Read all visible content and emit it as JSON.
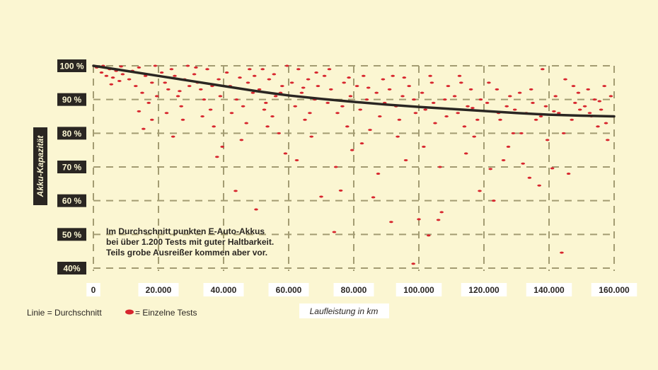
{
  "chart_data": {
    "type": "scatter",
    "title": "",
    "xlabel": "Laufleistung in km",
    "ylabel": "Akku-Kapazität",
    "xlim": [
      0,
      160000
    ],
    "ylim": [
      40,
      100
    ],
    "grid": true,
    "x_ticks": [
      {
        "value": 0,
        "label": "0"
      },
      {
        "value": 20000,
        "label": "20.000"
      },
      {
        "value": 40000,
        "label": "40.000"
      },
      {
        "value": 60000,
        "label": "60.000"
      },
      {
        "value": 80000,
        "label": "80.000"
      },
      {
        "value": 100000,
        "label": "100.000"
      },
      {
        "value": 120000,
        "label": "120.000"
      },
      {
        "value": 140000,
        "label": "140.000"
      },
      {
        "value": 160000,
        "label": "160.000"
      }
    ],
    "y_ticks": [
      {
        "value": 100,
        "label": "100 %"
      },
      {
        "value": 90,
        "label": "90 %"
      },
      {
        "value": 80,
        "label": "80 %"
      },
      {
        "value": 70,
        "label": "70 %"
      },
      {
        "value": 60,
        "label": "60 %"
      },
      {
        "value": 50,
        "label": "50 %"
      },
      {
        "value": 40,
        "label": "40%"
      }
    ],
    "annotation": [
      "Im Durchschnitt punkten E-Auto-Akkus",
      "bei über 1.200 Tests mit guter Haltbarkeit.",
      "Teils grobe Ausreißer kommen aber vor."
    ],
    "legend": {
      "line": "Linie = Durchschnitt",
      "points": "= Einzelne Tests",
      "placement": "bottom-left"
    },
    "colors": {
      "points": "#d7262e",
      "line": "#2a2622",
      "grid": "#a39c72",
      "background": "#fbf6d2"
    },
    "series": [
      {
        "type": "line",
        "name": "Durchschnitt",
        "points": [
          [
            0,
            100
          ],
          [
            10000,
            98.5
          ],
          [
            20000,
            97
          ],
          [
            30000,
            95.5
          ],
          [
            40000,
            94
          ],
          [
            50000,
            92.5
          ],
          [
            60000,
            91.2
          ],
          [
            70000,
            90.2
          ],
          [
            80000,
            89.3
          ],
          [
            90000,
            88.5
          ],
          [
            100000,
            87.8
          ],
          [
            110000,
            87.2
          ],
          [
            120000,
            86.6
          ],
          [
            130000,
            86
          ],
          [
            140000,
            85.5
          ],
          [
            150000,
            85.2
          ],
          [
            160000,
            85
          ]
        ]
      },
      {
        "type": "scatter",
        "name": "Einzelne Tests",
        "points": [
          [
            1000,
            99.5
          ],
          [
            2500,
            98
          ],
          [
            3000,
            100
          ],
          [
            4000,
            97
          ],
          [
            5000,
            99
          ],
          [
            6000,
            96.5
          ],
          [
            7000,
            98.5
          ],
          [
            8000,
            95.5
          ],
          [
            9000,
            97.5
          ],
          [
            5500,
            94.5
          ],
          [
            8500,
            99.8
          ],
          [
            11000,
            96
          ],
          [
            12000,
            98.5
          ],
          [
            13000,
            94
          ],
          [
            14000,
            99.5
          ],
          [
            15000,
            92
          ],
          [
            16000,
            97
          ],
          [
            17000,
            89
          ],
          [
            18000,
            95
          ],
          [
            19000,
            100
          ],
          [
            15400,
            81.3
          ],
          [
            18000,
            84
          ],
          [
            14000,
            86.5
          ],
          [
            19500,
            91
          ],
          [
            21000,
            98
          ],
          [
            22000,
            95
          ],
          [
            23000,
            93
          ],
          [
            24000,
            99
          ],
          [
            25000,
            97
          ],
          [
            26000,
            91
          ],
          [
            27000,
            88
          ],
          [
            28000,
            96
          ],
          [
            29000,
            100
          ],
          [
            22500,
            86
          ],
          [
            27500,
            84
          ],
          [
            24500,
            79
          ],
          [
            26500,
            92.5
          ],
          [
            29500,
            94
          ],
          [
            31000,
            97.5
          ],
          [
            32000,
            95
          ],
          [
            33000,
            93
          ],
          [
            34000,
            90
          ],
          [
            35000,
            99
          ],
          [
            36000,
            87
          ],
          [
            37000,
            82
          ],
          [
            38000,
            73
          ],
          [
            39600,
            76
          ],
          [
            38500,
            96
          ],
          [
            33500,
            85
          ],
          [
            36500,
            94
          ],
          [
            31500,
            99.5
          ],
          [
            39000,
            91
          ],
          [
            41000,
            98
          ],
          [
            42000,
            94
          ],
          [
            43700,
            62.9
          ],
          [
            44000,
            90
          ],
          [
            45000,
            96.5
          ],
          [
            46000,
            88
          ],
          [
            47000,
            83
          ],
          [
            48000,
            99
          ],
          [
            49000,
            92
          ],
          [
            50000,
            57.4
          ],
          [
            45500,
            78
          ],
          [
            42500,
            86
          ],
          [
            47500,
            95
          ],
          [
            49500,
            97
          ],
          [
            51000,
            93
          ],
          [
            52000,
            99
          ],
          [
            53000,
            89
          ],
          [
            54000,
            96
          ],
          [
            55000,
            85
          ],
          [
            56000,
            91
          ],
          [
            57000,
            80
          ],
          [
            58000,
            94
          ],
          [
            59000,
            74
          ],
          [
            55500,
            97.5
          ],
          [
            52500,
            87
          ],
          [
            57500,
            92
          ],
          [
            59500,
            100
          ],
          [
            53500,
            82
          ],
          [
            61000,
            95
          ],
          [
            62000,
            88
          ],
          [
            63000,
            99
          ],
          [
            64000,
            92
          ],
          [
            65000,
            84
          ],
          [
            66000,
            96
          ],
          [
            67000,
            79
          ],
          [
            68000,
            90
          ],
          [
            69000,
            94
          ],
          [
            70000,
            61.2
          ],
          [
            62500,
            72
          ],
          [
            66500,
            86
          ],
          [
            68500,
            98
          ],
          [
            64500,
            93.5
          ],
          [
            71000,
            97
          ],
          [
            72000,
            89
          ],
          [
            73000,
            93
          ],
          [
            74000,
            50.7
          ],
          [
            75000,
            86
          ],
          [
            76000,
            63
          ],
          [
            77000,
            95
          ],
          [
            78000,
            82
          ],
          [
            79000,
            91
          ],
          [
            72500,
            99
          ],
          [
            74500,
            70
          ],
          [
            76500,
            88
          ],
          [
            78500,
            96.5
          ],
          [
            79500,
            75
          ],
          [
            81000,
            94
          ],
          [
            82000,
            87
          ],
          [
            83000,
            97
          ],
          [
            84000,
            90
          ],
          [
            85000,
            81
          ],
          [
            86000,
            61
          ],
          [
            87000,
            92
          ],
          [
            88000,
            85
          ],
          [
            89000,
            96
          ],
          [
            82500,
            77
          ],
          [
            84500,
            93.5
          ],
          [
            87500,
            68
          ],
          [
            89500,
            89
          ],
          [
            91000,
            93
          ],
          [
            91500,
            53.7
          ],
          [
            92000,
            97
          ],
          [
            93000,
            88
          ],
          [
            94000,
            84
          ],
          [
            95000,
            91
          ],
          [
            96000,
            72
          ],
          [
            97000,
            94
          ],
          [
            98300,
            41.3
          ],
          [
            99000,
            86
          ],
          [
            100000,
            54.5
          ],
          [
            93500,
            79
          ],
          [
            95500,
            96.5
          ],
          [
            98500,
            90
          ],
          [
            101000,
            92
          ],
          [
            102000,
            87
          ],
          [
            103000,
            49.7
          ],
          [
            104000,
            95
          ],
          [
            105000,
            83
          ],
          [
            106000,
            54.3
          ],
          [
            107000,
            56.6
          ],
          [
            108000,
            90
          ],
          [
            109000,
            94
          ],
          [
            101500,
            76
          ],
          [
            104500,
            89
          ],
          [
            106500,
            70
          ],
          [
            108500,
            85
          ],
          [
            103500,
            97
          ],
          [
            111000,
            91
          ],
          [
            112000,
            86
          ],
          [
            113000,
            95
          ],
          [
            114000,
            82
          ],
          [
            115000,
            88
          ],
          [
            116000,
            93
          ],
          [
            117000,
            79
          ],
          [
            118700,
            62.9
          ],
          [
            119000,
            90
          ],
          [
            112500,
            97
          ],
          [
            114500,
            74
          ],
          [
            116500,
            87.5
          ],
          [
            118000,
            84
          ],
          [
            121000,
            89
          ],
          [
            122000,
            69.4
          ],
          [
            123000,
            60
          ],
          [
            124000,
            93
          ],
          [
            125000,
            84
          ],
          [
            126000,
            72
          ],
          [
            127000,
            88
          ],
          [
            128000,
            91
          ],
          [
            129000,
            80
          ],
          [
            121500,
            95
          ],
          [
            124500,
            86
          ],
          [
            127500,
            76
          ],
          [
            129500,
            87
          ],
          [
            131000,
            92
          ],
          [
            132000,
            71
          ],
          [
            133000,
            86
          ],
          [
            134000,
            66.8
          ],
          [
            135000,
            89
          ],
          [
            136000,
            84
          ],
          [
            137000,
            64.5
          ],
          [
            138000,
            99
          ],
          [
            139000,
            88
          ],
          [
            131500,
            80
          ],
          [
            134500,
            93
          ],
          [
            137500,
            85
          ],
          [
            139500,
            78
          ],
          [
            141000,
            69.6
          ],
          [
            142000,
            91
          ],
          [
            143000,
            86
          ],
          [
            143900,
            44.6
          ],
          [
            145000,
            96
          ],
          [
            146000,
            68
          ],
          [
            147000,
            84
          ],
          [
            148000,
            89
          ],
          [
            149000,
            92
          ],
          [
            141500,
            86.5
          ],
          [
            144500,
            80
          ],
          [
            147500,
            94
          ],
          [
            149500,
            87
          ],
          [
            151000,
            88
          ],
          [
            152000,
            93
          ],
          [
            153000,
            85
          ],
          [
            154000,
            90
          ],
          [
            155000,
            82
          ],
          [
            156000,
            87
          ],
          [
            157000,
            94
          ],
          [
            158000,
            78
          ],
          [
            159000,
            91
          ],
          [
            152500,
            86
          ],
          [
            155500,
            89.5
          ],
          [
            157500,
            83
          ],
          [
            159500,
            85
          ]
        ]
      }
    ]
  }
}
